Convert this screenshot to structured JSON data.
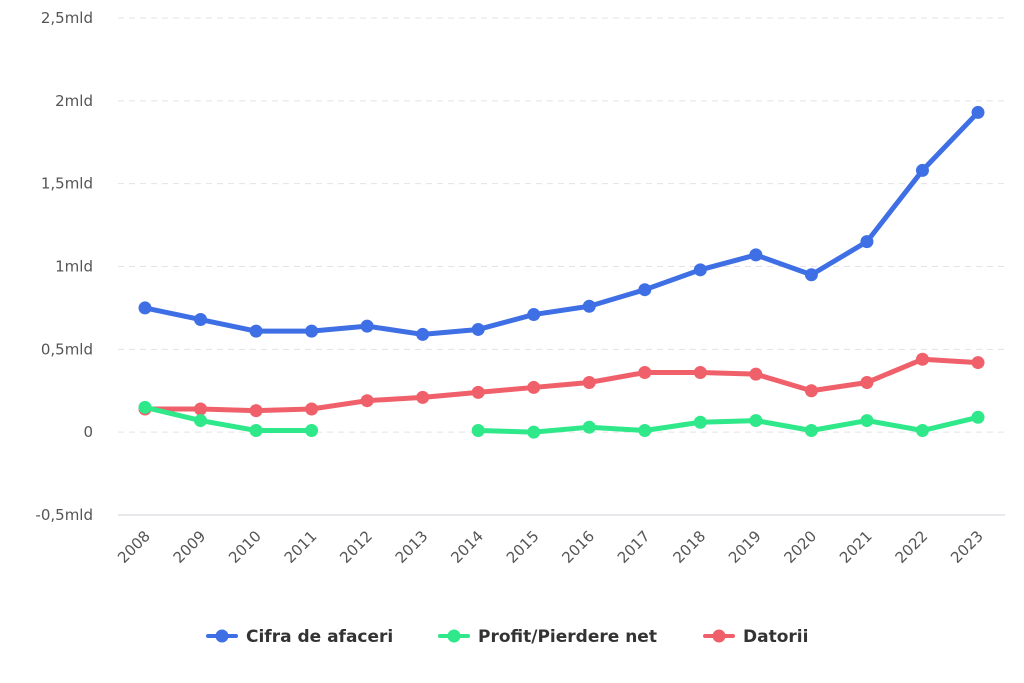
{
  "chart_data": {
    "type": "line",
    "title": "",
    "xlabel": "",
    "ylabel": "",
    "x": [
      "2008",
      "2009",
      "2010",
      "2011",
      "2012",
      "2013",
      "2014",
      "2015",
      "2016",
      "2017",
      "2018",
      "2019",
      "2020",
      "2021",
      "2022",
      "2023"
    ],
    "ylim": [
      -0.5,
      2.5
    ],
    "yticks": [
      {
        "value": 2.5,
        "label": "2,5mld"
      },
      {
        "value": 2.0,
        "label": "2mld"
      },
      {
        "value": 1.5,
        "label": "1,5mld"
      },
      {
        "value": 1.0,
        "label": "1mld"
      },
      {
        "value": 0.5,
        "label": "0,5mld"
      },
      {
        "value": 0.0,
        "label": "0"
      },
      {
        "value": -0.5,
        "label": "-0,5mld"
      }
    ],
    "grid": true,
    "legend_position": "bottom",
    "series": [
      {
        "name": "Cifra de afaceri",
        "color": "#3f6fe4",
        "values": [
          0.75,
          0.68,
          0.61,
          0.61,
          0.64,
          0.59,
          0.62,
          0.71,
          0.76,
          0.86,
          0.98,
          1.07,
          0.95,
          1.15,
          1.58,
          1.93
        ]
      },
      {
        "name": "Profit/Pierdere net",
        "color": "#2ee88a",
        "values": [
          0.15,
          0.07,
          0.01,
          0.01,
          null,
          null,
          0.01,
          0.0,
          0.03,
          0.01,
          0.06,
          0.07,
          0.01,
          0.07,
          0.01,
          0.09
        ]
      },
      {
        "name": "Datorii",
        "color": "#f0606a",
        "values": [
          0.14,
          0.14,
          0.13,
          0.14,
          0.19,
          0.21,
          0.24,
          0.27,
          0.3,
          0.36,
          0.36,
          0.35,
          0.25,
          0.3,
          0.44,
          0.42
        ]
      }
    ]
  }
}
